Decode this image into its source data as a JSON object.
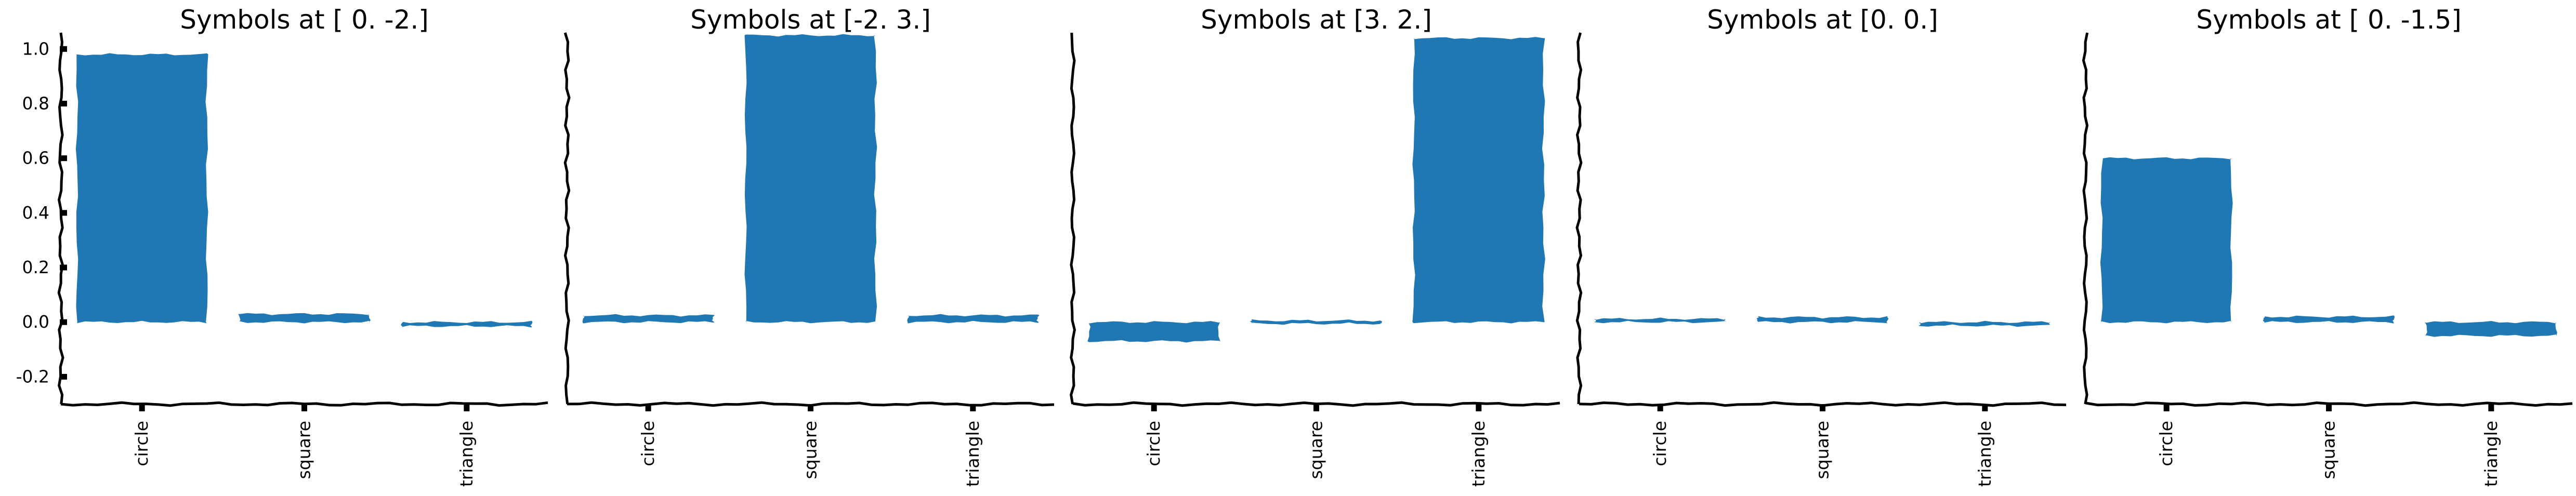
{
  "chart_data": [
    {
      "type": "bar",
      "title": "Symbols at [ 0. -2.]",
      "categories": [
        "circle",
        "square",
        "triangle"
      ],
      "values": [
        0.98,
        0.03,
        -0.015
      ],
      "ylim": [
        -0.3,
        1.05
      ],
      "yticks": [
        "-0.2",
        "0.0",
        "0.2",
        "0.4",
        "0.6",
        "0.8",
        "1.0"
      ],
      "show_yticks": true,
      "color": "#1f77b4",
      "grid": false
    },
    {
      "type": "bar",
      "title": "Symbols at [-2.  3.]",
      "categories": [
        "circle",
        "square",
        "triangle"
      ],
      "values": [
        0.025,
        1.05,
        0.025
      ],
      "ylim": [
        -0.3,
        1.05
      ],
      "show_yticks": false,
      "color": "#1f77b4",
      "grid": false
    },
    {
      "type": "bar",
      "title": "Symbols at [3. 2.]",
      "categories": [
        "circle",
        "square",
        "triangle"
      ],
      "values": [
        -0.07,
        0.003,
        1.04
      ],
      "ylim": [
        -0.3,
        1.05
      ],
      "show_yticks": false,
      "color": "#1f77b4",
      "grid": false
    },
    {
      "type": "bar",
      "title": "Symbols at [0. 0.]",
      "categories": [
        "circle",
        "square",
        "triangle"
      ],
      "values": [
        0.012,
        0.018,
        -0.013
      ],
      "ylim": [
        -0.3,
        1.05
      ],
      "show_yticks": false,
      "color": "#1f77b4",
      "grid": false
    },
    {
      "type": "bar",
      "title": "Symbols at [ 0.  -1.5]",
      "categories": [
        "circle",
        "square",
        "triangle"
      ],
      "values": [
        0.6,
        0.02,
        -0.05
      ],
      "ylim": [
        -0.3,
        1.05
      ],
      "show_yticks": false,
      "color": "#1f77b4",
      "grid": false
    }
  ]
}
